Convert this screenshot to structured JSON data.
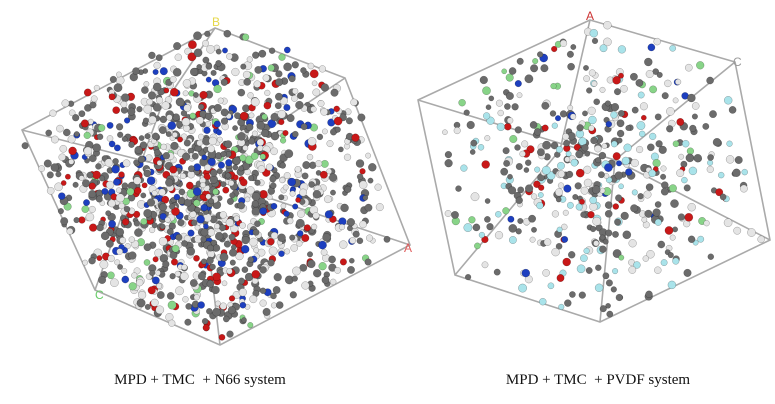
{
  "panels": [
    {
      "caption": "MPD + TMC  + N66 system",
      "axis_labels": [
        "B",
        "A",
        "C"
      ]
    },
    {
      "caption": "MPD + TMC  + PVDF system",
      "axis_labels": [
        "A",
        "C"
      ]
    }
  ]
}
